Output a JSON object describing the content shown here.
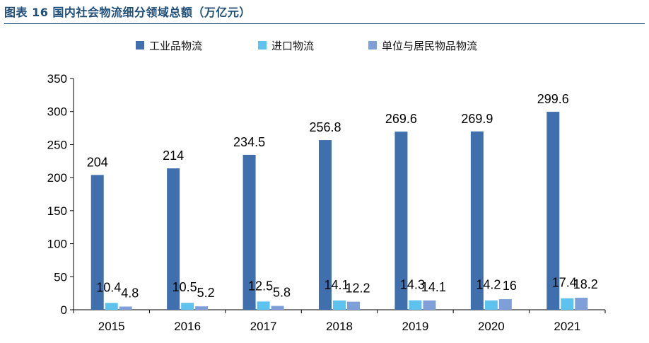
{
  "page": {
    "title": "图表 16 国内社会物流细分领域总额（万亿元）"
  },
  "colors": {
    "title": "#1f4e79",
    "axis": "#000000"
  },
  "chart_data": {
    "type": "bar",
    "title": "",
    "xlabel": "",
    "ylabel": "",
    "categories": [
      "2015",
      "2016",
      "2017",
      "2018",
      "2019",
      "2020",
      "2021"
    ],
    "series": [
      {
        "name": "工业品物流",
        "color": "#3f6fac",
        "values": [
          204,
          214,
          234.5,
          256.8,
          269.6,
          269.9,
          299.6
        ],
        "labels": [
          "204",
          "214",
          "234.5",
          "256.8",
          "269.6",
          "269.9",
          "299.6"
        ]
      },
      {
        "name": "进口物流",
        "color": "#5ec2ee",
        "values": [
          10.4,
          10.5,
          12.5,
          14.1,
          14.3,
          14.2,
          17.4
        ],
        "labels": [
          "10.4",
          "10.5",
          "12.5",
          "14.1",
          "14.3",
          "14.2",
          "17.4"
        ]
      },
      {
        "name": "单位与居民物品物流",
        "color": "#7f9fd8",
        "values": [
          4.8,
          5.2,
          5.8,
          12.2,
          14.1,
          16,
          18.2
        ],
        "labels": [
          "4.8",
          "5.2",
          "5.8",
          "12.2",
          "14.1",
          "16",
          "18.2"
        ]
      }
    ],
    "ylim": [
      0,
      350
    ],
    "yticks": [
      0,
      50,
      100,
      150,
      200,
      250,
      300,
      350
    ],
    "grid": false,
    "legend_position": "top-center"
  }
}
